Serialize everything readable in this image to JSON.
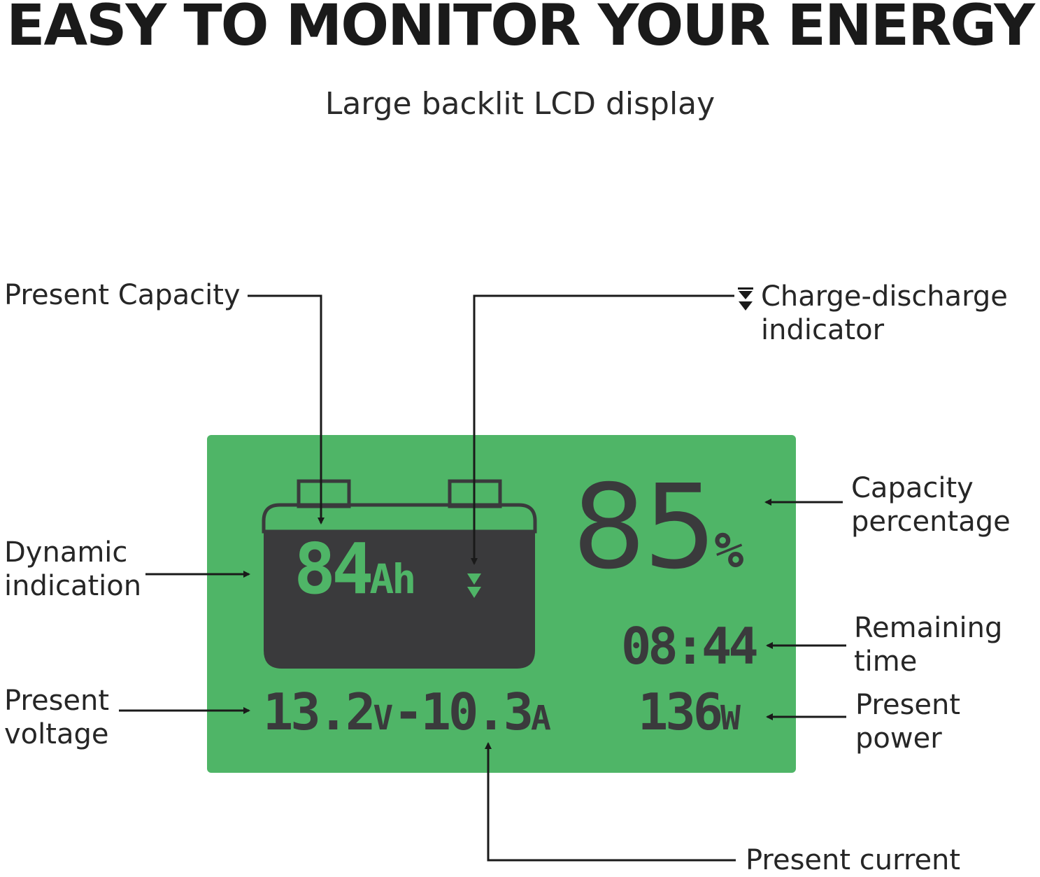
{
  "header": {
    "title": "EASY TO MONITOR YOUR ENERGY",
    "subtitle": "Large backlit LCD display"
  },
  "labels": {
    "present_capacity": "Present Capacity",
    "charge_indicator": [
      "Charge-discharge",
      "indicator"
    ],
    "dynamic_indication": [
      "Dynamic",
      "indication"
    ],
    "capacity_percentage": [
      "Capacity",
      "percentage"
    ],
    "remaining_time": [
      "Remaining",
      "time"
    ],
    "present_voltage": [
      "Present",
      "voltage"
    ],
    "present_power": [
      "Present",
      "power"
    ],
    "present_current": "Present current"
  },
  "lcd": {
    "capacity_value": "84",
    "capacity_unit": "Ah",
    "percentage_value": "85",
    "percentage_unit": "%",
    "remaining_time": "08:44",
    "voltage_value": "13.2",
    "voltage_unit": "V",
    "current_value": "-10.3",
    "current_unit": "A",
    "power_value": "136",
    "power_unit": "W"
  },
  "colors": {
    "lcd_background": "#4fb567",
    "lcd_foreground": "#3a3a3c",
    "text": "#262626",
    "lines": "#1a1a1a"
  }
}
